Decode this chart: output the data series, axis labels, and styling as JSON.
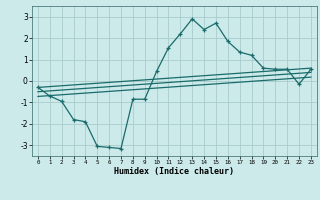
{
  "xlabel": "Humidex (Indice chaleur)",
  "x_ticks": [
    0,
    1,
    2,
    3,
    4,
    5,
    6,
    7,
    8,
    9,
    10,
    11,
    12,
    13,
    14,
    15,
    16,
    17,
    18,
    19,
    20,
    21,
    22,
    23
  ],
  "ylim": [
    -3.5,
    3.5
  ],
  "xlim": [
    -0.5,
    23.5
  ],
  "yticks": [
    -3,
    -2,
    -1,
    0,
    1,
    2,
    3
  ],
  "bg_color": "#cceaea",
  "grid_color": "#aacccc",
  "line_color": "#1a6b6b",
  "line1_x": [
    0,
    1,
    2,
    3,
    4,
    5,
    6,
    7,
    8,
    9,
    10,
    11,
    12,
    13,
    14,
    15,
    16,
    17,
    18,
    19,
    20,
    21,
    22,
    23
  ],
  "line1_y": [
    -0.3,
    -0.7,
    -0.95,
    -1.8,
    -1.9,
    -3.05,
    -3.1,
    -3.15,
    -0.85,
    -0.85,
    0.45,
    1.55,
    2.2,
    2.9,
    2.4,
    2.7,
    1.85,
    1.35,
    1.2,
    0.6,
    0.55,
    0.55,
    -0.15,
    0.55
  ],
  "line2_x": [
    0,
    23
  ],
  "line2_y": [
    -0.3,
    0.6
  ],
  "line3_x": [
    0,
    23
  ],
  "line3_y": [
    -0.5,
    0.4
  ],
  "line4_x": [
    0,
    23
  ],
  "line4_y": [
    -0.72,
    0.18
  ]
}
